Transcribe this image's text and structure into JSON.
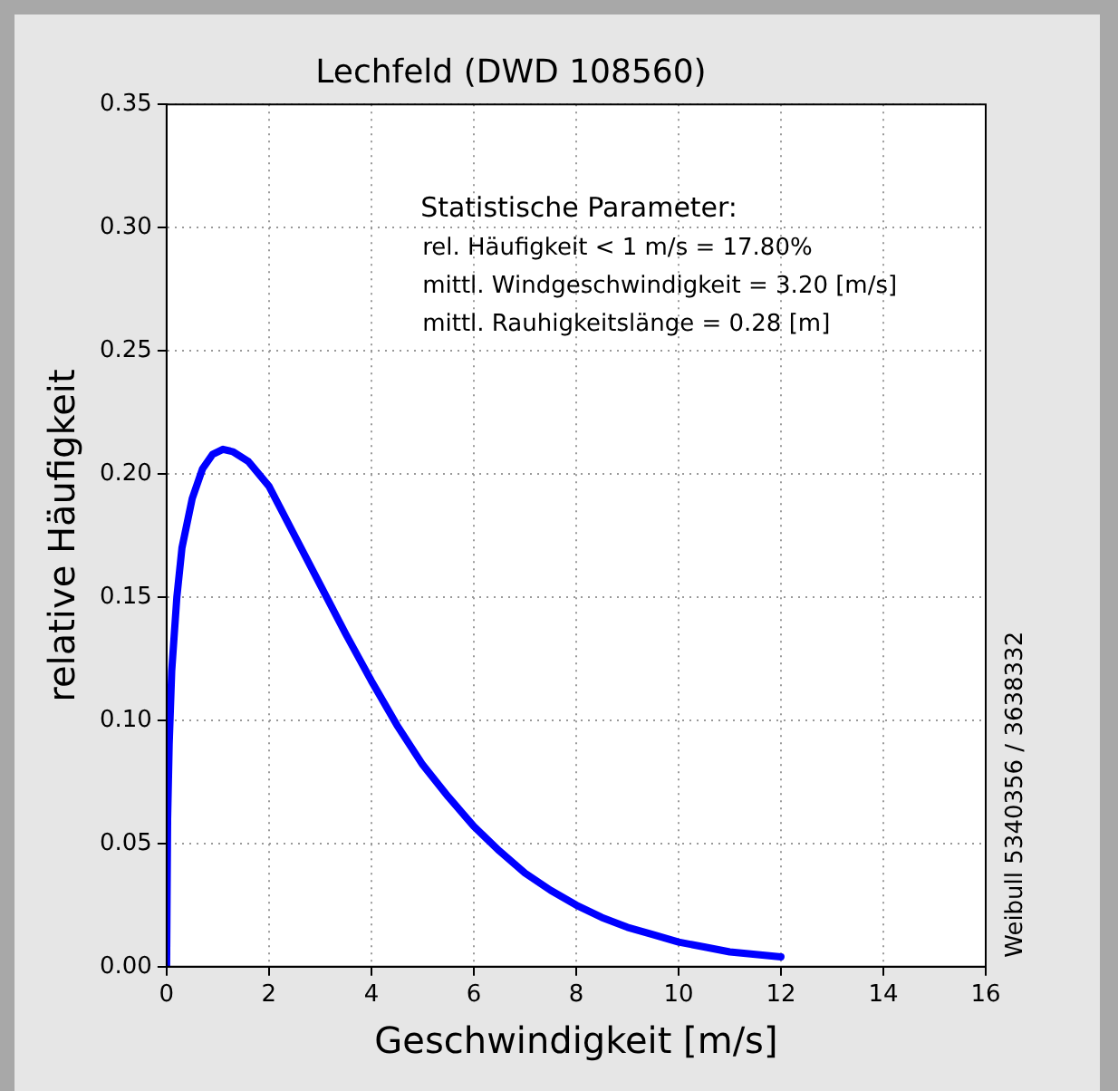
{
  "chart_data": {
    "type": "line",
    "title": "Lechfeld (DWD 108560)",
    "xlabel": "Geschwindigkeit [m/s]",
    "ylabel": "relative Häufigkeit",
    "x": [
      0,
      0.02,
      0.05,
      0.1,
      0.2,
      0.3,
      0.5,
      0.7,
      0.9,
      1.1,
      1.3,
      1.6,
      2,
      2.5,
      3,
      3.5,
      4,
      4.5,
      5,
      5.5,
      6,
      6.5,
      7,
      7.5,
      8,
      8.5,
      9,
      9.5,
      10,
      10.5,
      11,
      11.5,
      12
    ],
    "series": [
      {
        "color": "#0000ff",
        "values": [
          0,
          0.06,
          0.09,
          0.12,
          0.15,
          0.17,
          0.19,
          0.202,
          0.208,
          0.21,
          0.209,
          0.205,
          0.195,
          0.175,
          0.155,
          0.135,
          0.116,
          0.098,
          0.082,
          0.069,
          0.057,
          0.047,
          0.038,
          0.031,
          0.025,
          0.02,
          0.016,
          0.013,
          0.01,
          0.008,
          0.006,
          0.005,
          0.004
        ]
      }
    ],
    "xlim": [
      0,
      16
    ],
    "xticks": [
      0,
      2,
      4,
      6,
      8,
      10,
      12,
      14,
      16
    ],
    "ylim": [
      0,
      0.35
    ],
    "yticks": [
      {
        "value": 0,
        "label": "0.00"
      },
      {
        "value": 0.05,
        "label": "0.05"
      },
      {
        "value": 0.1,
        "label": "0.10"
      },
      {
        "value": 0.15,
        "label": "0.15"
      },
      {
        "value": 0.2,
        "label": "0.20"
      },
      {
        "value": 0.25,
        "label": "0.25"
      },
      {
        "value": 0.3,
        "label": "0.30"
      },
      {
        "value": 0.35,
        "label": "0.35"
      }
    ],
    "grid": true,
    "line_style": "solid",
    "marker": "none",
    "annotations": [
      "Statistische Parameter:",
      "rel. Häufigkeit < 1 m/s = 17.80%",
      "mittl. Windgeschwindigkeit = 3.20 [m/s]",
      "mittl. Rauhigkeitslänge = 0.28 [m]",
      "Weibull 5340356 / 3638332"
    ]
  }
}
